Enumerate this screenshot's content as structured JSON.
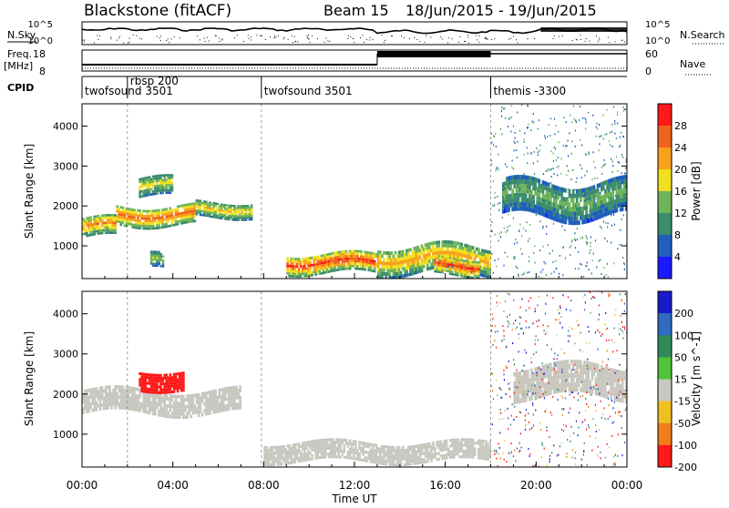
{
  "header": {
    "title": "Blackstone (fitACF)",
    "beam": "Beam 15",
    "date_range": "18/Jun/2015 - 19/Jun/2015"
  },
  "top_panels": {
    "nsky_label": "N.Sky",
    "nsearch_label": "N.Search",
    "noise_ticks": [
      "10^5",
      "10^0"
    ],
    "freq_label_1": "Freq.",
    "freq_label_2": "[MHz]",
    "freq_ticks": [
      "18",
      "8"
    ],
    "nave_label": "Nave",
    "nave_ticks": [
      "60",
      "0"
    ],
    "cpid_label": "CPID",
    "cpid_programs": [
      {
        "name": "twofsound 3501",
        "start_h": 0.0
      },
      {
        "name": "rbsp 200",
        "start_h": 2.0
      },
      {
        "name": "twofsound 3501",
        "start_h": 7.9
      },
      {
        "name": "themis -3300",
        "start_h": 18.0
      }
    ]
  },
  "chart_data": [
    {
      "type": "heatmap",
      "parameter": "Power",
      "ylabel": "Slant Range [km]",
      "yticks": [
        1000,
        2000,
        3000,
        4000
      ],
      "ylim": [
        180,
        4560
      ],
      "xlim_hours": [
        0,
        24
      ],
      "colorbar_label": "Power [dB]",
      "colorbar_ticks": [
        4,
        8,
        12,
        16,
        20,
        24,
        28
      ],
      "colorbar_range": [
        0,
        32
      ],
      "colors": [
        "#1a1aff",
        "#1f5fbf",
        "#3c8c6e",
        "#6fb45a",
        "#f0e020",
        "#f7a21a",
        "#f0631a",
        "#ff1a1a"
      ],
      "echo_regions": [
        {
          "t0": 0.0,
          "t1": 1.5,
          "r0": 1200,
          "r1": 1700,
          "dB": 24
        },
        {
          "t0": 1.5,
          "t1": 5.0,
          "r0": 1500,
          "r1": 2000,
          "dB": 26
        },
        {
          "t0": 5.0,
          "t1": 7.5,
          "r0": 1700,
          "r1": 2100,
          "dB": 20
        },
        {
          "t0": 2.5,
          "t1": 4.0,
          "r0": 2200,
          "r1": 2700,
          "dB": 18
        },
        {
          "t0": 3.0,
          "t1": 3.6,
          "r0": 400,
          "r1": 800,
          "dB": 16
        },
        {
          "t0": 9.0,
          "t1": 13.0,
          "r0": 300,
          "r1": 800,
          "dB": 28
        },
        {
          "t0": 13.0,
          "t1": 18.0,
          "r0": 300,
          "r1": 1000,
          "dB": 22
        },
        {
          "t0": 15.5,
          "t1": 17.5,
          "r0": 250,
          "r1": 700,
          "dB": 28
        },
        {
          "t0": 18.5,
          "t1": 24.0,
          "r0": 1700,
          "r1": 2600,
          "dB": 14
        }
      ]
    },
    {
      "type": "heatmap",
      "parameter": "Velocity",
      "ylabel": "Slant Range [km]",
      "yticks": [
        1000,
        2000,
        3000,
        4000
      ],
      "ylim": [
        180,
        4560
      ],
      "xlabel": "Time UT",
      "xticks": [
        "00:00",
        "04:00",
        "08:00",
        "12:00",
        "16:00",
        "20:00",
        "00:00"
      ],
      "xlim_hours": [
        0,
        24
      ],
      "colorbar_label": "Velocity [m s^-1]",
      "colorbar_ticks": [
        200,
        100,
        50,
        15,
        -15,
        -50,
        -100,
        -200
      ],
      "colors": [
        "#1a1acd",
        "#2f6bc0",
        "#2e8b57",
        "#4fc33a",
        "#c8c8c0",
        "#f0c020",
        "#f07d1a",
        "#ff1a1a"
      ],
      "echo_regions": [
        {
          "t0": 0.0,
          "t1": 7.0,
          "r0": 1500,
          "r1": 2100,
          "v": 0
        },
        {
          "t0": 2.5,
          "t1": 4.5,
          "r0": 2100,
          "r1": 2600,
          "v": -220
        },
        {
          "t0": 8.0,
          "t1": 18.0,
          "r0": 300,
          "r1": 800,
          "v": 0
        },
        {
          "t0": 19.0,
          "t1": 24.0,
          "r0": 1900,
          "r1": 2700,
          "v": 0
        }
      ]
    }
  ]
}
